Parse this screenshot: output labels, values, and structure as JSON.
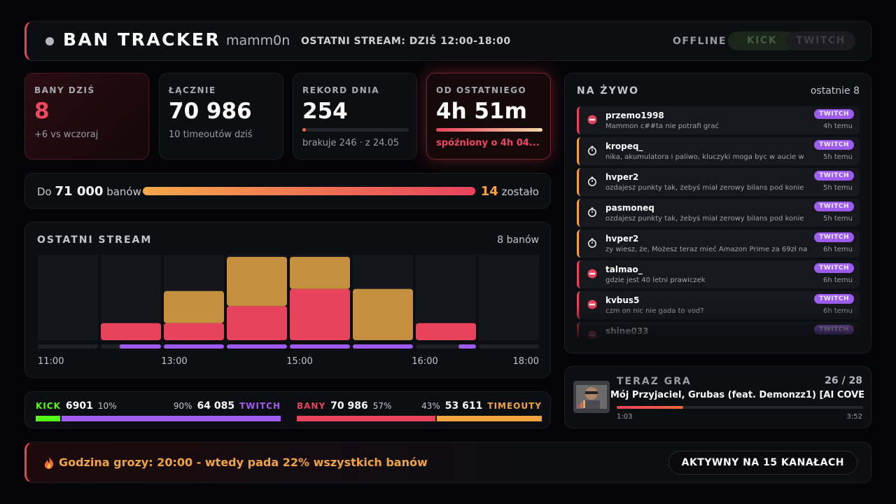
{
  "header": {
    "title": "BAN TRACKER",
    "channel": "mamm0n",
    "stream_info": "OSTATNI STREAM: DZIŚ 12:00-18:00",
    "status": "OFFLINE",
    "platforms": [
      "KICK",
      "TWITCH"
    ]
  },
  "stats": [
    {
      "label": "BANY DZIŚ",
      "value": "8",
      "note": "+6 vs wczoraj"
    },
    {
      "label": "ŁĄCZNIE",
      "value": "70 986",
      "note": "10 timeoutów dziś"
    },
    {
      "label": "REKORD DNIA",
      "value": "254",
      "note": "brakuje 246 · z 24.05",
      "progress": 3
    },
    {
      "label": "OD OSTATNIEGO",
      "value": "4h 51m",
      "note": "spóźniony o 4h 04...",
      "progress": 100
    }
  ],
  "goal": {
    "prefix": "Do",
    "target": "71 000",
    "unit": "banów",
    "progress": 99.98,
    "remaining": "14",
    "remaining_label": "zostało"
  },
  "chart": {
    "title": "OSTATNI STREAM",
    "total": "8 banów",
    "ylim": [
      0,
      5
    ],
    "series": [
      {
        "color": "#e8435c",
        "values": [
          0,
          1,
          1,
          2,
          3,
          0,
          1,
          0
        ]
      },
      {
        "color": "#c48f3e",
        "values": [
          0,
          0,
          2,
          3,
          2,
          3,
          0,
          0
        ]
      }
    ],
    "twitch_share": {
      "color": "#9d5cf0",
      "values": [
        0,
        69,
        100,
        100,
        100,
        100,
        29,
        0
      ]
    },
    "xticks": [
      "11:00",
      "13:00",
      "15:00",
      "16:00",
      "18:00"
    ]
  },
  "split": [
    {
      "left_label": "KICK",
      "left_value": "6901",
      "left_share": {
        "value": 10,
        "label": "10%"
      },
      "left_color": "#53fc18",
      "right_share": {
        "value": 90,
        "label": "90%"
      },
      "right_value": "64 085",
      "right_label": "TWITCH",
      "right_color": "#a35cf2"
    },
    {
      "left_label": "BANY",
      "left_value": "70 986",
      "left_share": {
        "value": 57,
        "label": "57%"
      },
      "left_color": "#e8435c",
      "right_share": {
        "value": 43,
        "label": "43%"
      },
      "right_value": "53 611",
      "right_label": "TIMEOUTY",
      "right_color": "#f2a440"
    }
  ],
  "live": {
    "title": "NA ŻYWO",
    "count": "ostatnie 8",
    "items": [
      {
        "user": "przemo1998",
        "message": "Mammon c##ta nie potrafi grać",
        "platform": "TWITCH",
        "time": "4h temu",
        "kind": "ban"
      },
      {
        "user": "kropeq_",
        "message": "nika, akumulatora i paliwo, kluczyki moga byc w aucie w",
        "platform": "TWITCH",
        "time": "5h temu",
        "kind": "timeout"
      },
      {
        "user": "hvper2",
        "message": "ozdajesz punkty tak, żebyś miał zerowy bilans pod konie",
        "platform": "TWITCH",
        "time": "5h temu",
        "kind": "timeout"
      },
      {
        "user": "pasmoneq",
        "message": "ozdajesz punkty tak, żebyś miał zerowy bilans pod konie",
        "platform": "TWITCH",
        "time": "5h temu",
        "kind": "timeout"
      },
      {
        "user": "hvper2",
        "message": "zy wiesz, że, Możesz teraz mieć Amazon Prime za 69zł na",
        "platform": "TWITCH",
        "time": "6h temu",
        "kind": "timeout"
      },
      {
        "user": "talmao_",
        "message": "gdzie jest 40 letni prawiczek",
        "platform": "TWITCH",
        "time": "6h temu",
        "kind": "ban"
      },
      {
        "user": "kvbus5",
        "message": "czm on nic nie gada to vod?",
        "platform": "TWITCH",
        "time": "6h temu",
        "kind": "ban"
      },
      {
        "user": "shine033",
        "platform": "TWITCH",
        "kind": "ban"
      }
    ]
  },
  "now_playing": {
    "label": "TERAZ GRA",
    "position": "26 / 28",
    "title": "Mój Przyjaciel, Grubas (feat. Demonzz1) [AI COVE",
    "elapsed": "1:03",
    "duration": "3:52",
    "progress": 27
  },
  "footer": {
    "text": "Godzina grozy: 20:00 - wtedy pada 22% wszystkich banów",
    "badge": "AKTYWNY NA 15 KANAŁACH"
  }
}
